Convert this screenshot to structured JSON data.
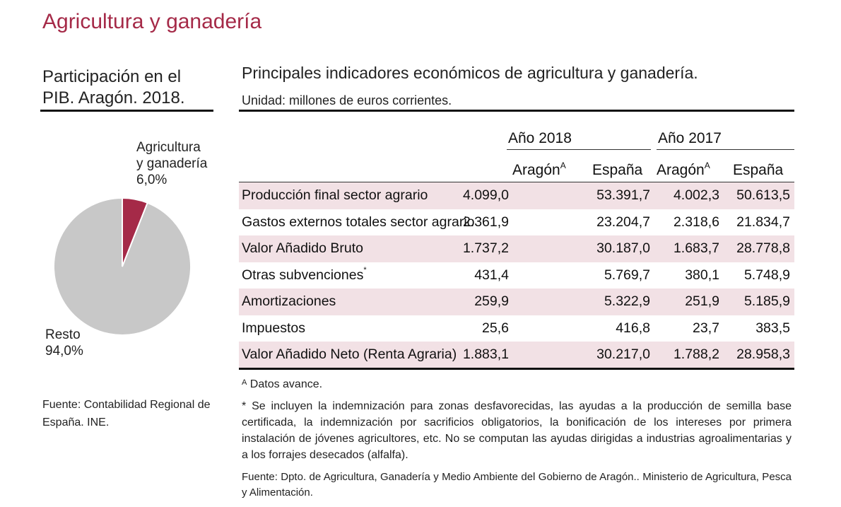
{
  "main_title": "Agricultura y ganadería",
  "pie": {
    "heading": "Participación en el PIB. Aragón. 2018.",
    "slices": [
      {
        "label_line1": "Agricultura",
        "label_line2": "y ganadería",
        "value_text": "6,0%",
        "value": 6.0,
        "color": "#a52a48"
      },
      {
        "label_line1": "Resto",
        "value_text": "94,0%",
        "value": 94.0,
        "color": "#c8c8c8"
      }
    ],
    "source": "Fuente: Contabilidad Regional de España. INE."
  },
  "chart_data": {
    "type": "pie",
    "title": "Participación en el PIB. Aragón. 2018.",
    "categories": [
      "Agricultura y ganadería",
      "Resto"
    ],
    "values": [
      6.0,
      94.0
    ]
  },
  "table": {
    "heading": "Principales indicadores económicos de agricultura y ganadería.",
    "unit": "Unidad: millones de euros corrientes.",
    "years": [
      "Año 2018",
      "Año 2017"
    ],
    "col_aragon": "Aragón",
    "col_aragon_sup": "A",
    "col_espana": "España",
    "rows": [
      {
        "label": "Producción final sector agrario",
        "cells": [
          "4.099,0",
          "53.391,7",
          "4.002,3",
          "50.613,5"
        ],
        "shaded": true
      },
      {
        "label": "Gastos externos totales sector agrario",
        "cells": [
          "2.361,9",
          "23.204,7",
          "2.318,6",
          "21.834,7"
        ],
        "shaded": false
      },
      {
        "label": "Valor Añadido Bruto",
        "cells": [
          "1.737,2",
          "30.187,0",
          "1.683,7",
          "28.778,8"
        ],
        "shaded": true
      },
      {
        "label": "Otras subvenciones",
        "label_sup": "*",
        "cells": [
          "431,4",
          "5.769,7",
          "380,1",
          "5.748,9"
        ],
        "shaded": false
      },
      {
        "label": "Amortizaciones",
        "cells": [
          "259,9",
          "5.322,9",
          "251,9",
          "5.185,9"
        ],
        "shaded": true
      },
      {
        "label": "Impuestos",
        "cells": [
          "25,6",
          "416,8",
          "23,7",
          "383,5"
        ],
        "shaded": false
      },
      {
        "label": "Valor Añadido Neto (Renta Agraria)",
        "cells": [
          "1.883,1",
          "30.217,0",
          "1.788,2",
          "28.958,3"
        ],
        "shaded": true
      }
    ],
    "note_a_sup": "A",
    "note_a": " Datos avance.",
    "note_star": "* Se incluyen la indemnización para zonas desfavorecidas, las ayudas a la producción de semilla base certificada, la indemnización por sacrificios obligatorios, la bonificación de los intereses por primera instalación de jóvenes agricultores, etc. No se computan las ayudas dirigidas a industrias agroalimentarias y a los forrajes desecados (alfalfa).",
    "source": "Fuente: Dpto. de Agricultura, Ganadería y Medio Ambiente del Gobierno de Aragón.. Ministerio de Agricultura, Pesca y Alimentación."
  }
}
